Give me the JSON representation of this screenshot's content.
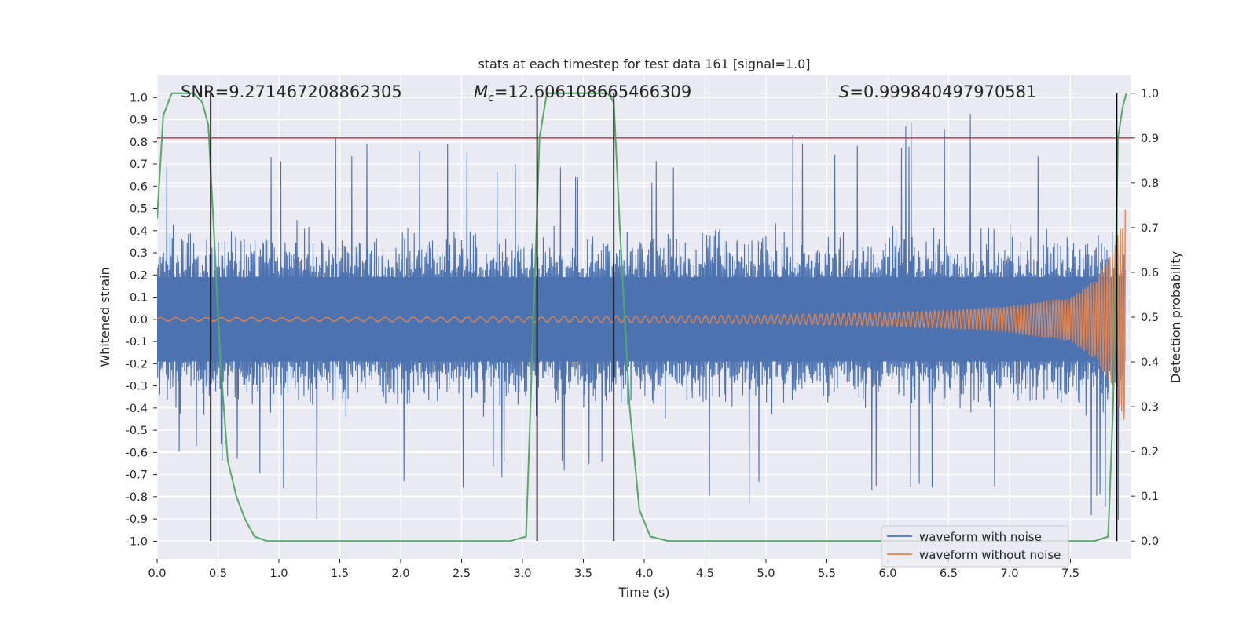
{
  "chart_data": {
    "type": "line",
    "title": "stats at each timestep for test data 161 [signal=1.0]",
    "xlabel": "Time (s)",
    "ylabel_left": "Whitened strain",
    "ylabel_right": "Detection probability",
    "xlim": [
      0.0,
      8.0
    ],
    "ylim_left": [
      -1.08,
      1.1
    ],
    "ylim_right": [
      -0.04,
      1.04
    ],
    "x_ticks": [
      "0.0",
      "0.5",
      "1.0",
      "1.5",
      "2.0",
      "2.5",
      "3.0",
      "3.5",
      "4.0",
      "4.5",
      "5.0",
      "5.5",
      "6.0",
      "6.5",
      "7.0",
      "7.5"
    ],
    "y_ticks_left": [
      "1.0",
      "0.9",
      "0.8",
      "0.7",
      "0.6",
      "0.5",
      "0.4",
      "0.3",
      "0.2",
      "0.1",
      "0.0",
      "-0.1",
      "-0.2",
      "-0.3",
      "-0.4",
      "-0.5",
      "-0.6",
      "-0.7",
      "-0.8",
      "-0.9",
      "-1.0"
    ],
    "y_ticks_right": [
      "1.0",
      "0.9",
      "0.8",
      "0.7",
      "0.6",
      "0.5",
      "0.4",
      "0.3",
      "0.2",
      "0.1",
      "0.0"
    ],
    "annotations": {
      "snr": "SNR=9.271467208862305",
      "mc_symbol": "M",
      "mc_sub": "c",
      "mc_value": "=12.606108665466309",
      "s_symbol": "S",
      "s_value": "=0.999840497970581"
    },
    "threshold": {
      "value": 0.9,
      "axis": "right",
      "color": "#c44e52"
    },
    "vertical_lines": [
      0.44,
      3.12,
      3.75,
      7.88
    ],
    "series": [
      {
        "name": "waveform with noise",
        "color": "#4c72b0",
        "axis": "left",
        "envelope_points": {
          "time": [
            0.0,
            0.5,
            1.0,
            1.5,
            2.0,
            2.5,
            3.0,
            3.5,
            4.0,
            4.5,
            5.0,
            5.5,
            6.0,
            6.5,
            7.0,
            7.5,
            7.95
          ],
          "max": [
            0.69,
            0.84,
            0.72,
            0.83,
            0.81,
            0.8,
            0.75,
            0.72,
            0.7,
            0.84,
            0.96,
            0.8,
            0.86,
            1.0,
            0.8,
            0.82,
            0.6
          ],
          "min": [
            -0.71,
            -0.65,
            -0.78,
            -0.98,
            -0.8,
            -0.78,
            -0.75,
            -0.72,
            -0.75,
            -0.93,
            -0.8,
            -0.78,
            -0.82,
            -0.78,
            -0.8,
            -0.94,
            -0.9
          ]
        }
      },
      {
        "name": "waveform without noise",
        "color": "#dd8452",
        "axis": "left",
        "envelope_points": {
          "time": [
            0.0,
            1.0,
            2.0,
            3.0,
            4.0,
            5.0,
            6.0,
            6.5,
            7.0,
            7.5,
            7.7,
            7.85,
            7.95
          ],
          "amplitude": [
            0.008,
            0.008,
            0.01,
            0.012,
            0.015,
            0.02,
            0.03,
            0.04,
            0.06,
            0.1,
            0.18,
            0.3,
            0.52
          ]
        }
      },
      {
        "name": "detection probability",
        "color": "#55a868",
        "axis": "right",
        "x": [
          0.0,
          0.05,
          0.12,
          0.2,
          0.3,
          0.37,
          0.42,
          0.47,
          0.52,
          0.58,
          0.65,
          0.72,
          0.8,
          0.9,
          1.0,
          2.0,
          2.9,
          3.03,
          3.09,
          3.14,
          3.2,
          3.3,
          3.5,
          3.7,
          3.75,
          3.8,
          3.88,
          3.96,
          4.05,
          4.2,
          5.0,
          6.0,
          7.0,
          7.7,
          7.81,
          7.85,
          7.89,
          7.93,
          7.96
        ],
        "y": [
          0.72,
          0.95,
          1.0,
          1.0,
          1.0,
          0.98,
          0.93,
          0.67,
          0.4,
          0.18,
          0.1,
          0.05,
          0.01,
          0.0,
          0.0,
          0.0,
          0.0,
          0.01,
          0.5,
          0.9,
          1.0,
          1.0,
          1.0,
          1.0,
          0.98,
          0.7,
          0.3,
          0.07,
          0.01,
          0.0,
          0.0,
          0.0,
          0.0,
          0.0,
          0.01,
          0.3,
          0.9,
          0.97,
          1.0
        ]
      }
    ],
    "legend": {
      "location": "lower-right",
      "entries": [
        "waveform with noise",
        "waveform without noise"
      ]
    },
    "colors": {
      "axes_bg": "#eaeaf2",
      "grid": "#ffffff",
      "text": "#262626",
      "vline": "#000000"
    }
  }
}
